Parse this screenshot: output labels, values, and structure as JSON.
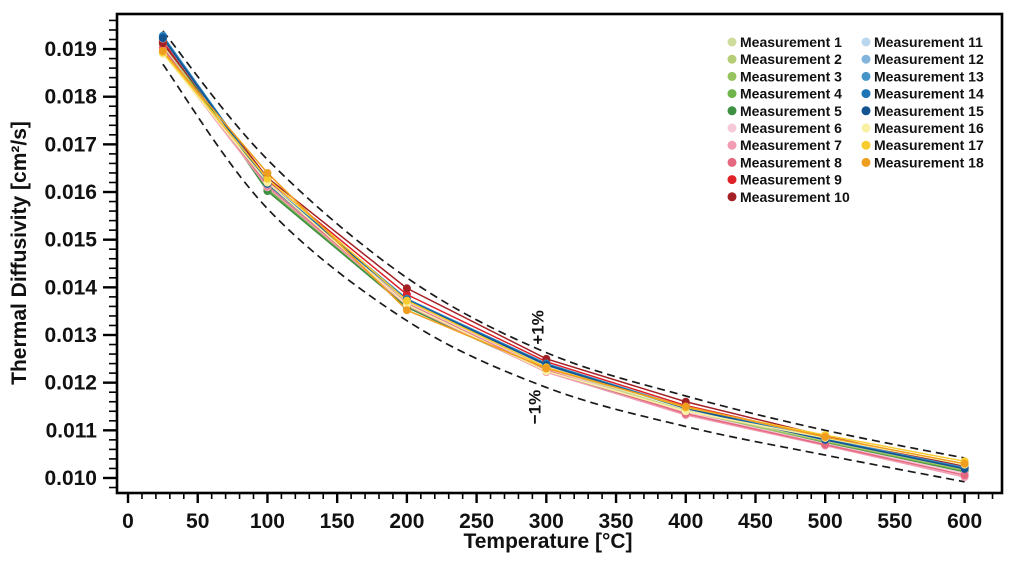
{
  "chart_data": {
    "type": "line",
    "title": "",
    "xlabel": "Temperature [°C]",
    "ylabel": "Thermal Diffusivity [cm²/s]",
    "grid": false,
    "legend_position": "top-right",
    "xlim": [
      -7.9,
      626.8
    ],
    "ylim": [
      0.009685,
      0.019735
    ],
    "x_major_ticks": [
      0,
      50,
      100,
      150,
      200,
      250,
      300,
      350,
      400,
      450,
      500,
      550,
      600
    ],
    "x_minor_step": 10,
    "x_minor_range": [
      0,
      620
    ],
    "y_major_ticks": [
      0.01,
      0.011,
      0.012,
      0.013,
      0.014,
      0.015,
      0.016,
      0.017,
      0.018,
      0.019
    ],
    "y_minor_step": 0.0002,
    "y_minor_range": [
      0.0098,
      0.0196
    ],
    "x": [
      25,
      100,
      200,
      300,
      400,
      500,
      600
    ],
    "series": [
      {
        "name": "Measurement 1",
        "color": "#cedd9b",
        "values": [
          0.0191,
          0.01615,
          0.01368,
          0.0123,
          0.01142,
          0.01078,
          0.01018
        ]
      },
      {
        "name": "Measurement 2",
        "color": "#b5cd74",
        "values": [
          0.01912,
          0.01612,
          0.01365,
          0.01228,
          0.0114,
          0.01076,
          0.01016
        ]
      },
      {
        "name": "Measurement 3",
        "color": "#96c45f",
        "values": [
          0.01915,
          0.01608,
          0.01362,
          0.01226,
          0.01138,
          0.01075,
          0.01015
        ]
      },
      {
        "name": "Measurement 4",
        "color": "#6fb54b",
        "values": [
          0.01918,
          0.01605,
          0.0136,
          0.01225,
          0.01137,
          0.01074,
          0.01014
        ]
      },
      {
        "name": "Measurement 5",
        "color": "#3f9142",
        "values": [
          0.01921,
          0.01602,
          0.01358,
          0.01224,
          0.01136,
          0.01073,
          0.01012
        ]
      },
      {
        "name": "Measurement 6",
        "color": "#f7c9d8",
        "values": [
          0.019,
          0.01618,
          0.0137,
          0.01228,
          0.01138,
          0.01072,
          0.0101
        ]
      },
      {
        "name": "Measurement 7",
        "color": "#f19cb2",
        "values": [
          0.01894,
          0.0161,
          0.01362,
          0.01222,
          0.01132,
          0.01068,
          0.01002
        ]
      },
      {
        "name": "Measurement 8",
        "color": "#e4687f",
        "values": [
          0.01903,
          0.01614,
          0.01366,
          0.01226,
          0.01135,
          0.0107,
          0.01006
        ]
      },
      {
        "name": "Measurement 9",
        "color": "#df2127",
        "values": [
          0.01916,
          0.01625,
          0.01385,
          0.01244,
          0.01152,
          0.01086,
          0.01022
        ]
      },
      {
        "name": "Measurement 10",
        "color": "#a32025",
        "values": [
          0.01912,
          0.0163,
          0.01398,
          0.0125,
          0.0116,
          0.01088,
          0.01024
        ]
      },
      {
        "name": "Measurement 11",
        "color": "#bad7ed",
        "values": [
          0.01922,
          0.01616,
          0.01372,
          0.01236,
          0.01146,
          0.0108,
          0.0102
        ]
      },
      {
        "name": "Measurement 12",
        "color": "#83b4db",
        "values": [
          0.01924,
          0.01618,
          0.01374,
          0.01238,
          0.01147,
          0.01081,
          0.01021
        ]
      },
      {
        "name": "Measurement 13",
        "color": "#4695c9",
        "values": [
          0.01928,
          0.0162,
          0.01376,
          0.0124,
          0.01148,
          0.01082,
          0.01022
        ]
      },
      {
        "name": "Measurement 14",
        "color": "#1c73b5",
        "values": [
          0.01926,
          0.01619,
          0.01375,
          0.01239,
          0.01147,
          0.01081,
          0.0102
        ]
      },
      {
        "name": "Measurement 15",
        "color": "#125390",
        "values": [
          0.01923,
          0.01617,
          0.01373,
          0.01237,
          0.01146,
          0.0108,
          0.01019
        ]
      },
      {
        "name": "Measurement 16",
        "color": "#f9f0a4",
        "values": [
          0.0189,
          0.0162,
          0.01364,
          0.01224,
          0.0114,
          0.01084,
          0.01028
        ]
      },
      {
        "name": "Measurement 17",
        "color": "#f8cb2e",
        "values": [
          0.01893,
          0.01628,
          0.01372,
          0.01232,
          0.01148,
          0.0109,
          0.01035
        ]
      },
      {
        "name": "Measurement 18",
        "color": "#f09e1f",
        "values": [
          0.01896,
          0.0164,
          0.01352,
          0.0123,
          0.0115,
          0.01086,
          0.0103
        ]
      }
    ],
    "envelope": {
      "style": "dashed",
      "color": "#1a1a1a",
      "upper": [
        0.01938,
        0.01668,
        0.0142,
        0.01263,
        0.01172,
        0.011,
        0.01042
      ],
      "lower": [
        0.01868,
        0.01565,
        0.0133,
        0.0119,
        0.01108,
        0.01048,
        0.00992
      ]
    },
    "annotations": [
      {
        "text": "+1%",
        "t": 298,
        "d": 0.01316,
        "rotation": -90
      },
      {
        "text": "−1%",
        "t": 296,
        "d": 0.01149,
        "rotation": -90
      }
    ]
  }
}
